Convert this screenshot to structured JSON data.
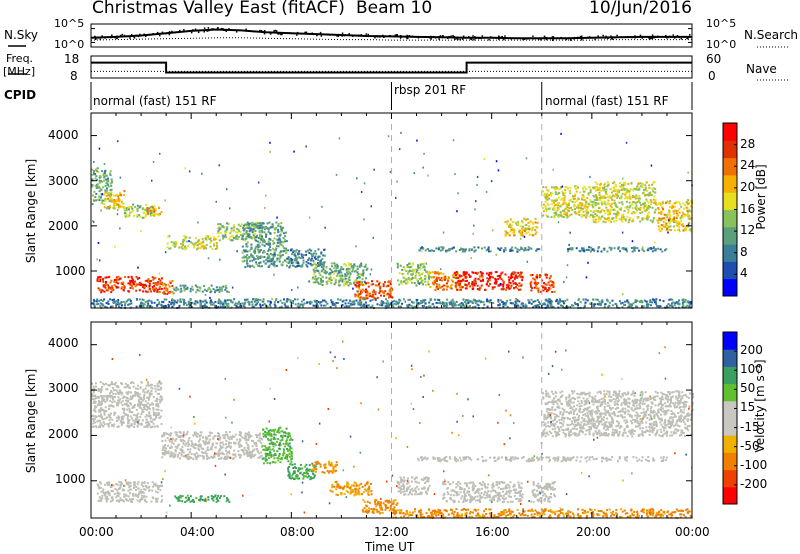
{
  "header": {
    "title": "Christmas Valley East (fitACF)",
    "beam": "Beam 10",
    "date": "10/Jun/2016"
  },
  "labels": {
    "nsky": "N.Sky",
    "nsearch": "N.Search",
    "freq_line1": "Freq.",
    "freq_line2": "[MHz]",
    "nave": "Nave",
    "cpid": "CPID",
    "slant_range": "Slant Range [km]",
    "power_label": "Power [dB]",
    "velocity_label": "Velocity [m s⁻¹]",
    "xlabel": "Time UT"
  },
  "noise_axis": {
    "left": [
      "10^5",
      "10^0"
    ],
    "right": [
      "10^5",
      "10^0"
    ]
  },
  "freq_axis": {
    "left": [
      "18",
      "8"
    ],
    "right": [
      "60",
      "0"
    ]
  },
  "cpid_segments": [
    {
      "label": "normal (fast) 151 RF",
      "start": 0,
      "end": 12
    },
    {
      "label": "rbsp 201 RF",
      "start": 12,
      "end": 18
    },
    {
      "label": "normal (fast) 151 RF",
      "start": 18,
      "end": 24
    }
  ],
  "colors": {
    "power_scale": [
      "#0000ff",
      "#1e4fb0",
      "#3a7f9a",
      "#5aa07a",
      "#88c25a",
      "#e6e020",
      "#f5b000",
      "#f07000",
      "#e03000",
      "#ff0000"
    ],
    "velocity_scale": [
      "#ff0000",
      "#f04000",
      "#f08000",
      "#f0b000",
      "#c8c8c0",
      "#c8c8c0",
      "#60c030",
      "#3aa060",
      "#3060a0",
      "#0000ff"
    ],
    "ground_scatter": "#bebeb6"
  },
  "chart_data": [
    {
      "type": "line",
      "title": "Noise",
      "x": [
        0,
        1,
        2,
        3,
        4,
        5,
        6,
        7,
        8,
        9,
        10,
        11,
        12,
        13,
        14,
        15,
        16,
        17,
        18,
        19,
        20,
        21,
        22,
        23,
        24
      ],
      "series": [
        {
          "name": "N.Sky",
          "values": [
            2.0,
            2.2,
            2.5,
            3.0,
            3.5,
            3.8,
            3.6,
            3.2,
            3.0,
            2.8,
            2.6,
            2.4,
            2.3,
            2.2,
            2.1,
            2.0,
            2.0,
            1.9,
            1.9,
            1.9,
            2.0,
            2.1,
            2.2,
            2.2,
            2.2
          ]
        },
        {
          "name": "N.Search",
          "values": [
            1.5,
            1.6,
            1.7,
            1.8,
            1.9,
            2.0,
            2.0,
            1.9,
            1.8,
            1.7,
            1.6,
            1.6,
            1.5,
            1.5,
            1.5,
            1.5,
            1.5,
            1.5,
            1.5,
            1.5,
            1.5,
            1.6,
            1.6,
            1.6,
            1.6
          ]
        }
      ],
      "xlim": [
        0,
        24
      ],
      "ylim": [
        0,
        5
      ],
      "ylabels_left": [
        "10^0",
        "10^5"
      ],
      "ylabels_right": [
        "10^0",
        "10^5"
      ]
    },
    {
      "type": "line",
      "title": "Frequency and Nave",
      "series": [
        {
          "name": "Freq.",
          "x": [
            0,
            3,
            3,
            15,
            15,
            24
          ],
          "values": [
            15,
            15,
            10.5,
            10.5,
            15,
            15
          ]
        },
        {
          "name": "Nave",
          "x": [
            0,
            24
          ],
          "values": [
            18,
            18
          ]
        }
      ],
      "xlim": [
        0,
        24
      ],
      "ylim_freq": [
        8,
        18
      ],
      "ylim_nave": [
        0,
        60
      ]
    },
    {
      "type": "heatmap",
      "title": "Power [dB]",
      "xlabel": "",
      "ylabel": "Slant Range [km]",
      "xlim": [
        0,
        24
      ],
      "ylim": [
        180,
        4500
      ],
      "yticks": [
        1000,
        2000,
        3000,
        4000
      ],
      "colorbar": {
        "label": "Power [dB]",
        "ticks": [
          4,
          8,
          12,
          16,
          20,
          24,
          28
        ],
        "range": [
          0,
          30
        ]
      },
      "regions": [
        {
          "t0": 0.0,
          "t1": 0.8,
          "r0": 2500,
          "r1": 3300,
          "power": 12
        },
        {
          "t0": 0.5,
          "t1": 1.3,
          "r0": 2400,
          "r1": 2800,
          "power": 18
        },
        {
          "t0": 1.3,
          "t1": 2.5,
          "r0": 2200,
          "r1": 2500,
          "power": 14
        },
        {
          "t0": 2.2,
          "t1": 2.8,
          "r0": 2250,
          "r1": 2450,
          "power": 20
        },
        {
          "t0": 0.2,
          "t1": 2.8,
          "r0": 550,
          "r1": 900,
          "power": 26
        },
        {
          "t0": 2.8,
          "t1": 3.3,
          "r0": 500,
          "r1": 800,
          "power": 22
        },
        {
          "t0": 3.0,
          "t1": 5.0,
          "r0": 1500,
          "r1": 1800,
          "power": 16
        },
        {
          "t0": 5.0,
          "t1": 6.8,
          "r0": 1700,
          "r1": 2100,
          "power": 14
        },
        {
          "t0": 3.2,
          "t1": 5.5,
          "r0": 550,
          "r1": 700,
          "power": 10
        },
        {
          "t0": 6.0,
          "t1": 7.8,
          "r0": 1100,
          "r1": 2100,
          "power": 10
        },
        {
          "t0": 7.8,
          "t1": 9.3,
          "r0": 1100,
          "r1": 1500,
          "power": 8
        },
        {
          "t0": 8.8,
          "t1": 11.0,
          "r0": 700,
          "r1": 1200,
          "power": 12
        },
        {
          "t0": 10.5,
          "t1": 12.0,
          "r0": 400,
          "r1": 800,
          "power": 24
        },
        {
          "t0": 12.2,
          "t1": 13.5,
          "r0": 700,
          "r1": 1200,
          "power": 14
        },
        {
          "t0": 13.5,
          "t1": 15.0,
          "r0": 600,
          "r1": 1000,
          "power": 22
        },
        {
          "t0": 14.5,
          "t1": 17.2,
          "r0": 600,
          "r1": 1000,
          "power": 27
        },
        {
          "t0": 17.5,
          "t1": 18.5,
          "r0": 550,
          "r1": 950,
          "power": 25
        },
        {
          "t0": 16.5,
          "t1": 17.8,
          "r0": 1800,
          "r1": 2200,
          "power": 18
        },
        {
          "t0": 13.0,
          "t1": 18.0,
          "r0": 1450,
          "r1": 1550,
          "power": 8
        },
        {
          "t0": 18.0,
          "t1": 20.0,
          "r0": 2200,
          "r1": 2900,
          "power": 16
        },
        {
          "t0": 20.0,
          "t1": 22.5,
          "r0": 2100,
          "r1": 3000,
          "power": 16
        },
        {
          "t0": 22.5,
          "t1": 24.0,
          "r0": 1900,
          "r1": 2600,
          "power": 18
        },
        {
          "t0": 19.0,
          "t1": 23.0,
          "r0": 1450,
          "r1": 1550,
          "power": 8
        },
        {
          "t0": 0.0,
          "t1": 24.0,
          "r0": 200,
          "r1": 400,
          "power": 8
        }
      ]
    },
    {
      "type": "heatmap",
      "title": "Velocity [m s-1]",
      "xlabel": "Time UT",
      "ylabel": "Slant Range [km]",
      "xlim": [
        0,
        24
      ],
      "ylim": [
        180,
        4500
      ],
      "yticks": [
        1000,
        2000,
        3000,
        4000
      ],
      "xticks": [
        "00:00",
        "04:00",
        "08:00",
        "12:00",
        "16:00",
        "20:00",
        "00:00"
      ],
      "colorbar": {
        "label": "Velocity [m s⁻¹]",
        "ticks": [
          -200,
          -100,
          -50,
          -15,
          15,
          50,
          100,
          200
        ]
      },
      "regions": [
        {
          "t0": 0.0,
          "t1": 2.8,
          "r0": 2200,
          "r1": 3200,
          "velocity": 0,
          "ground": true
        },
        {
          "t0": 0.2,
          "t1": 2.8,
          "r0": 550,
          "r1": 1000,
          "velocity": 0,
          "ground": true
        },
        {
          "t0": 2.8,
          "t1": 6.8,
          "r0": 1500,
          "r1": 2100,
          "velocity": 0,
          "ground": true
        },
        {
          "t0": 3.2,
          "t1": 5.5,
          "r0": 550,
          "r1": 700,
          "velocity": 60
        },
        {
          "t0": 6.8,
          "t1": 8.0,
          "r0": 1400,
          "r1": 2200,
          "velocity": 40
        },
        {
          "t0": 7.8,
          "t1": 9.0,
          "r0": 1050,
          "r1": 1400,
          "velocity": 60
        },
        {
          "t0": 8.8,
          "t1": 9.8,
          "r0": 1200,
          "r1": 1450,
          "velocity": -60
        },
        {
          "t0": 9.5,
          "t1": 11.2,
          "r0": 700,
          "r1": 1000,
          "velocity": -50
        },
        {
          "t0": 10.8,
          "t1": 12.2,
          "r0": 300,
          "r1": 600,
          "velocity": -60
        },
        {
          "t0": 12.2,
          "t1": 13.5,
          "r0": 700,
          "r1": 1100,
          "velocity": 0,
          "ground": true
        },
        {
          "t0": 14.0,
          "t1": 17.2,
          "r0": 550,
          "r1": 1000,
          "velocity": 0,
          "ground": true
        },
        {
          "t0": 17.5,
          "t1": 18.5,
          "r0": 550,
          "r1": 1000,
          "velocity": 0,
          "ground": true
        },
        {
          "t0": 18.0,
          "t1": 24.0,
          "r0": 2000,
          "r1": 3000,
          "velocity": 0,
          "ground": true
        },
        {
          "t0": 13.0,
          "t1": 23.0,
          "r0": 1450,
          "r1": 1550,
          "velocity": 0,
          "ground": true
        },
        {
          "t0": 12.0,
          "t1": 24.0,
          "r0": 200,
          "r1": 400,
          "velocity": -60
        }
      ]
    }
  ]
}
